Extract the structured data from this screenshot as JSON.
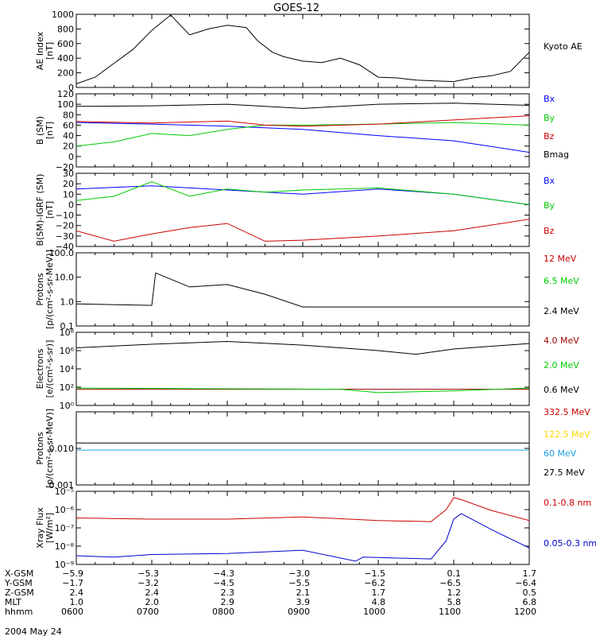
{
  "title": "GOES-12",
  "date_label": "2004 May 24",
  "chart_data": [
    {
      "type": "line",
      "panel": "ae",
      "ylabel": "AE Index [nT]",
      "ylim": [
        0,
        1000
      ],
      "ticks": [
        "1000",
        "800",
        "600",
        "400",
        "200",
        "0"
      ],
      "tick_values": [
        1000,
        800,
        600,
        400,
        200,
        0
      ],
      "series": [
        {
          "name": "Kyoto AE",
          "color": "#000000",
          "x": [
            0,
            0.25,
            0.5,
            0.75,
            1.0,
            1.25,
            1.5,
            1.75,
            2.0,
            2.25,
            2.4,
            2.6,
            2.75,
            3.0,
            3.25,
            3.5,
            3.75,
            4.0,
            4.25,
            4.5,
            4.75,
            5.0,
            5.25,
            5.5,
            5.75,
            6.0
          ],
          "y": [
            50,
            140,
            330,
            520,
            780,
            990,
            720,
            800,
            850,
            820,
            640,
            480,
            420,
            360,
            340,
            400,
            310,
            140,
            130,
            100,
            90,
            80,
            130,
            160,
            220,
            480
          ]
        }
      ]
    },
    {
      "type": "line",
      "panel": "b",
      "ylabel": "B (SM) [nT]",
      "ylim": [
        -20,
        120
      ],
      "ticks": [
        "120",
        "100",
        "80",
        "60",
        "40",
        "20",
        "0",
        "−20"
      ],
      "tick_values": [
        120,
        100,
        80,
        60,
        40,
        20,
        0,
        -20
      ],
      "series": [
        {
          "name": "Bx",
          "color": "#0000ff",
          "x": [
            0,
            1,
            2,
            3,
            4,
            5,
            6
          ],
          "y": [
            65,
            62,
            58,
            52,
            40,
            30,
            8
          ]
        },
        {
          "name": "By",
          "color": "#00cc00",
          "x": [
            0,
            0.5,
            1,
            1.5,
            2,
            2.5,
            3,
            4,
            5,
            6
          ],
          "y": [
            20,
            28,
            44,
            40,
            52,
            60,
            60,
            62,
            65,
            60
          ]
        },
        {
          "name": "Bz",
          "color": "#cc0000",
          "x": [
            0,
            1,
            2,
            2.5,
            3,
            4,
            5,
            6
          ],
          "y": [
            67,
            64,
            68,
            60,
            58,
            62,
            70,
            78
          ]
        },
        {
          "name": "Bmag",
          "color": "#000000",
          "x": [
            0,
            1,
            2,
            3,
            4,
            5,
            6
          ],
          "y": [
            96,
            97,
            100,
            92,
            100,
            102,
            98
          ]
        }
      ]
    },
    {
      "type": "line",
      "panel": "bdiff",
      "ylabel": "B(SM)-IGRF (SM) [nT]",
      "ylim": [
        -40,
        30
      ],
      "ticks": [
        "30",
        "20",
        "10",
        "0",
        "−10",
        "−20",
        "−30",
        "−40"
      ],
      "tick_values": [
        30,
        20,
        10,
        0,
        -10,
        -20,
        -30,
        -40
      ],
      "series": [
        {
          "name": "Bx",
          "color": "#0000ff",
          "x": [
            0,
            1,
            2,
            3,
            4,
            5,
            6
          ],
          "y": [
            15,
            18,
            14,
            10,
            15,
            10,
            0
          ]
        },
        {
          "name": "By",
          "color": "#00cc00",
          "x": [
            0,
            0.5,
            1,
            1.5,
            2,
            2.5,
            3,
            4,
            5,
            6
          ],
          "y": [
            4,
            8,
            22,
            8,
            15,
            12,
            14,
            16,
            10,
            0
          ]
        },
        {
          "name": "Bz",
          "color": "#cc0000",
          "x": [
            0,
            0.5,
            1,
            1.5,
            2,
            2.5,
            3,
            4,
            5,
            6
          ],
          "y": [
            -25,
            -35,
            -28,
            -22,
            -18,
            -35,
            -34,
            -30,
            -25,
            -14
          ]
        }
      ]
    },
    {
      "type": "line",
      "panel": "protons_low",
      "ylabel": "Protons [p/(cm²-s-sr-MeV)]",
      "yscale": "log",
      "ylim": [
        0.1,
        100
      ],
      "ticks": [
        "100.0",
        "10.0",
        "1.0",
        "0.1"
      ],
      "tick_values": [
        100,
        10,
        1,
        0.1
      ],
      "series": [
        {
          "name": "12 MeV",
          "color": "#cc0000",
          "x": [],
          "y": []
        },
        {
          "name": "6.5 MeV",
          "color": "#00cc00",
          "x": [],
          "y": []
        },
        {
          "name": "2.4 MeV",
          "color": "#000000",
          "x": [
            0,
            1.0,
            1.05,
            1.5,
            2.0,
            2.5,
            3.0,
            4.0,
            5.0,
            6.0
          ],
          "y": [
            0.8,
            0.7,
            15,
            4,
            5,
            2,
            0.6,
            0.6,
            0.6,
            0.6
          ]
        }
      ]
    },
    {
      "type": "line",
      "panel": "electrons",
      "ylabel": "Electrons [e/(cm²-s-sr)]",
      "yscale": "log",
      "ylim": [
        1,
        100000000
      ],
      "ticks": [
        "10⁸",
        "10⁶",
        "10⁴",
        "10²",
        "10⁰"
      ],
      "tick_values": [
        100000000,
        1000000,
        10000,
        100,
        1
      ],
      "series": [
        {
          "name": "4.0 MeV",
          "color": "#990000",
          "x": [
            0,
            6
          ],
          "y": [
            60,
            60
          ]
        },
        {
          "name": "2.0 MeV",
          "color": "#00cc00",
          "x": [
            0,
            3.5,
            4.0,
            5.0,
            6.0
          ],
          "y": [
            80,
            60,
            25,
            40,
            80
          ]
        },
        {
          "name": "0.6 MeV",
          "color": "#000000",
          "x": [
            0,
            1.0,
            2.0,
            3.0,
            4.0,
            4.5,
            5.0,
            6.0
          ],
          "y": [
            2000000,
            5000000,
            10000000,
            4000000,
            1000000,
            400000,
            1500000,
            6000000
          ]
        }
      ]
    },
    {
      "type": "line",
      "panel": "protons_high",
      "ylabel": "Protons [p/(cm²-s-sr-MeV)]",
      "yscale": "log",
      "ylim": [
        0.001,
        0.1
      ],
      "ticks": [
        "0.010",
        "0.001"
      ],
      "tick_values": [
        0.01,
        0.001
      ],
      "series": [
        {
          "name": "332.5 MeV",
          "color": "#cc0000",
          "x": [],
          "y": []
        },
        {
          "name": "122.5 MeV",
          "color": "#ffd700",
          "x": [],
          "y": []
        },
        {
          "name": "60 MeV",
          "color": "#1ea0e6",
          "x": [
            0,
            6
          ],
          "y": [
            0.009,
            0.009
          ]
        },
        {
          "name": "27.5 MeV",
          "color": "#000000",
          "x": [
            0,
            6
          ],
          "y": [
            0.014,
            0.014
          ]
        }
      ]
    },
    {
      "type": "line",
      "panel": "xray",
      "ylabel": "Xray Flux [W/m²]",
      "yscale": "log",
      "ylim": [
        1e-09,
        1e-05
      ],
      "ticks": [
        "10⁻⁵",
        "10⁻⁶",
        "10⁻⁷",
        "10⁻⁸",
        "10⁻⁹"
      ],
      "tick_values": [
        1e-05,
        1e-06,
        1e-07,
        1e-08,
        1e-09
      ],
      "series": [
        {
          "name": "0.1-0.8 nm",
          "color": "#cc0000",
          "x": [
            0,
            1,
            2,
            3,
            4,
            4.7,
            4.9,
            5.0,
            5.1,
            5.5,
            6.0
          ],
          "y": [
            3.5e-07,
            3e-07,
            3e-07,
            4e-07,
            2.5e-07,
            2.2e-07,
            1e-06,
            4.5e-06,
            3.5e-06,
            9e-07,
            2.5e-07
          ]
        },
        {
          "name": "0.05-0.3 nm",
          "color": "#0000cc",
          "x": [
            0,
            0.5,
            1,
            2,
            3,
            3.7,
            3.8,
            4.7,
            4.9,
            5.0,
            5.1,
            5.5,
            6.0
          ],
          "y": [
            3e-09,
            2.5e-09,
            3.5e-09,
            4e-09,
            6e-09,
            1.5e-09,
            2.5e-09,
            2e-09,
            2e-08,
            3e-07,
            6e-07,
            8e-08,
            8e-09
          ]
        }
      ]
    }
  ],
  "orbit_table": {
    "rows": [
      {
        "label": "X-GSM",
        "values": [
          "−5.9",
          "−5.3",
          "−4.3",
          "−3.0",
          "−1.5",
          "0.1",
          "1.7"
        ]
      },
      {
        "label": "Y-GSM",
        "values": [
          "−1.7",
          "−3.2",
          "−4.5",
          "−5.5",
          "−6.2",
          "−6.5",
          "−6.4"
        ]
      },
      {
        "label": "Z-GSM",
        "values": [
          "2.4",
          "2.4",
          "2.3",
          "2.1",
          "1.7",
          "1.2",
          "0.5"
        ]
      },
      {
        "label": "MLT",
        "values": [
          "1.0",
          "2.0",
          "2.9",
          "3.9",
          "4.8",
          "5.8",
          "6.8"
        ]
      },
      {
        "label": "hhmm",
        "values": [
          "0600",
          "0700",
          "0800",
          "0900",
          "1000",
          "1100",
          "1200"
        ]
      }
    ]
  }
}
